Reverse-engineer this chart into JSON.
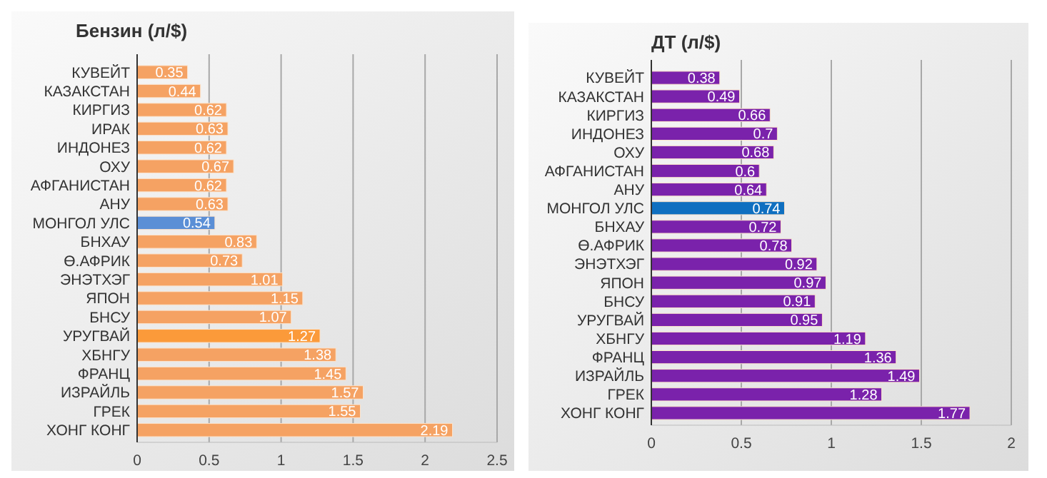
{
  "chart_data": [
    {
      "type": "bar",
      "orientation": "horizontal",
      "title": "Бензин (л/$)",
      "categories": [
        "КУВЕЙТ",
        "КАЗАКСТАН",
        "КИРГИЗ",
        "ИРАК",
        "ИНДОНЕЗ",
        "ОХУ",
        "АФГАНИСТАН",
        "АНУ",
        "МОНГОЛ УЛС",
        "БНХАУ",
        "Ө.АФРИК",
        "ЭНЭТХЭГ",
        "ЯПОН",
        "БНСУ",
        "УРУГВАЙ",
        "ХБНГУ",
        "ФРАНЦ",
        "ИЗРАЙЛЬ",
        "ГРЕК",
        "ХОНГ КОНГ"
      ],
      "values": [
        0.35,
        0.44,
        0.62,
        0.63,
        0.62,
        0.67,
        0.62,
        0.63,
        0.54,
        0.83,
        0.73,
        1.01,
        1.15,
        1.07,
        1.27,
        1.38,
        1.45,
        1.57,
        1.55,
        2.19
      ],
      "colors": [
        "#f5a263",
        "#f5a263",
        "#f5a263",
        "#f5a263",
        "#f5a263",
        "#f5a263",
        "#f5a263",
        "#f5a263",
        "#5b8fd6",
        "#f5a263",
        "#f5a263",
        "#f5a263",
        "#f5a263",
        "#f5a263",
        "#fb9a3a",
        "#f5a263",
        "#f5a263",
        "#f5a263",
        "#f5a263",
        "#f5a263"
      ],
      "xlim": [
        0,
        2.5
      ],
      "xticks": [
        0,
        0.5,
        1,
        1.5,
        2,
        2.5
      ],
      "grid": "x",
      "data_labels": true
    },
    {
      "type": "bar",
      "orientation": "horizontal",
      "title": "ДТ (л/$)",
      "categories": [
        "КУВЕЙТ",
        "КАЗАКСТАН",
        "КИРГИЗ",
        "ИНДОНЕЗ",
        "ОХУ",
        "АФГАНИСТАН",
        "АНУ",
        "МОНГОЛ УЛС",
        "БНХАУ",
        "Ө.АФРИК",
        "ЭНЭТХЭГ",
        "ЯПОН",
        "БНСУ",
        "УРУГВАЙ",
        "ХБНГУ",
        "ФРАНЦ",
        "ИЗРАЙЛЬ",
        "ГРЕК",
        "ХОНГ КОНГ"
      ],
      "values": [
        0.38,
        0.49,
        0.66,
        0.7,
        0.68,
        0.6,
        0.64,
        0.74,
        0.72,
        0.78,
        0.92,
        0.97,
        0.91,
        0.95,
        1.19,
        1.36,
        1.49,
        1.28,
        1.77
      ],
      "colors": [
        "#7a22ab",
        "#7a22ab",
        "#7a22ab",
        "#7a22ab",
        "#7a22ab",
        "#7a22ab",
        "#7a22ab",
        "#0f6fc0",
        "#7a22ab",
        "#7a22ab",
        "#7a22ab",
        "#7a22ab",
        "#7a22ab",
        "#7a22ab",
        "#7a22ab",
        "#7a22ab",
        "#7a22ab",
        "#7a22ab",
        "#7a22ab"
      ],
      "xlim": [
        0,
        2
      ],
      "xticks": [
        0,
        0.5,
        1,
        1.5,
        2
      ],
      "grid": "x",
      "data_labels": true
    }
  ]
}
